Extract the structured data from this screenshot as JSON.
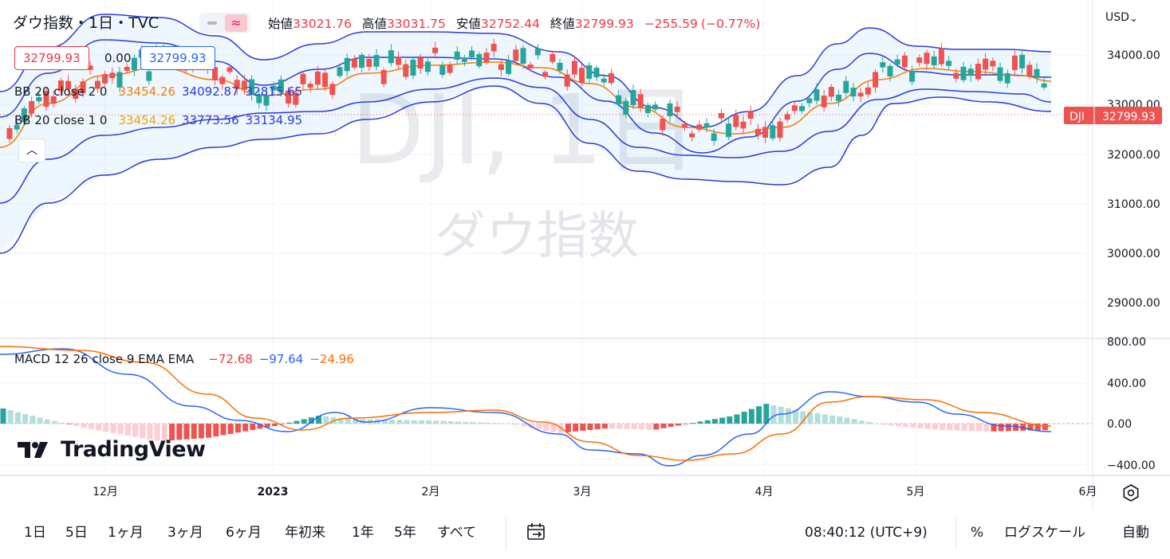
{
  "header": {
    "symbol": "ダウ指数",
    "interval": "1日",
    "source": "TVC",
    "ohlc": {
      "open_label": "始値",
      "open": "33021.76",
      "high_label": "高値",
      "high": "33031.75",
      "low_label": "安値",
      "low": "32752.44",
      "close_label": "終値",
      "close": "32799.93",
      "change": "−255.59",
      "change_pct": "(−0.77%)"
    },
    "sell_price": "32799.93",
    "spread": "0.00",
    "buy_price": "32799.93"
  },
  "indicators": {
    "bb2": {
      "label": "BB 20 close 2 0",
      "basis": "33454.26",
      "upper": "34092.87",
      "lower": "32815.65"
    },
    "bb1": {
      "label": "BB 20 close 1 0",
      "basis": "33454.26",
      "upper": "33773.56",
      "lower": "33134.95"
    },
    "macd": {
      "label": "MACD 12 26 close 9 EMA EMA",
      "hist": "−72.68",
      "macd": "−97.64",
      "signal": "−24.96"
    }
  },
  "watermark": {
    "ticker": "DJI, 1日",
    "name": "ダウ指数"
  },
  "price_axis": {
    "currency": "USD",
    "ticks": [
      "34000.00",
      "33000.00",
      "32000.00",
      "31000.00",
      "30000.00",
      "29000.00"
    ],
    "last_tag": "DJI",
    "last_price": "32799.93"
  },
  "macd_axis": {
    "ticks": [
      "800.00",
      "400.00",
      "0.00",
      "−400.00"
    ]
  },
  "time_axis": {
    "labels": [
      "12月",
      "2023",
      "2月",
      "3月",
      "4月",
      "5月",
      "6月"
    ]
  },
  "logo": "TradingView",
  "bottom_bar": {
    "ranges": [
      "1日",
      "5日",
      "1ヶ月",
      "3ヶ月",
      "6ヶ月",
      "年初来",
      "1年",
      "5年",
      "すべて"
    ],
    "time": "08:40:12 (UTC+9)",
    "percent": "%",
    "log_scale": "ログスケール",
    "auto": "自動"
  },
  "colors": {
    "up": "#26a69a",
    "down": "#ef5350",
    "basis": "#f57c00",
    "band": "#2a3cd6",
    "macd": "#2962ff",
    "signal": "#ff6d00"
  },
  "chart_data": [
    {
      "type": "candlestick",
      "title": "ダウ指数 · 1日 · TVC",
      "y_range": [
        28400,
        34600
      ],
      "x_labels": [
        "12月",
        "2023",
        "2月",
        "3月",
        "4月",
        "5月",
        "6月"
      ],
      "last": {
        "open": 33021.76,
        "high": 33031.75,
        "low": 32752.44,
        "close": 32799.93
      },
      "series": [
        {
          "name": "BB 20 close 2 0 basis",
          "values": [
            33454.26
          ]
        },
        {
          "name": "BB 20 close 2 0 upper",
          "values": [
            34092.87
          ]
        },
        {
          "name": "BB 20 close 2 0 lower",
          "values": [
            32815.65
          ]
        },
        {
          "name": "BB 20 close 1 0 upper",
          "values": [
            33773.56
          ]
        },
        {
          "name": "BB 20 close 1 0 lower",
          "values": [
            33134.95
          ]
        }
      ]
    },
    {
      "type": "line",
      "title": "MACD 12 26 close 9 EMA EMA",
      "y_range": [
        -450,
        800
      ],
      "last": {
        "histogram": -72.68,
        "macd": -97.64,
        "signal": -24.96
      }
    }
  ]
}
